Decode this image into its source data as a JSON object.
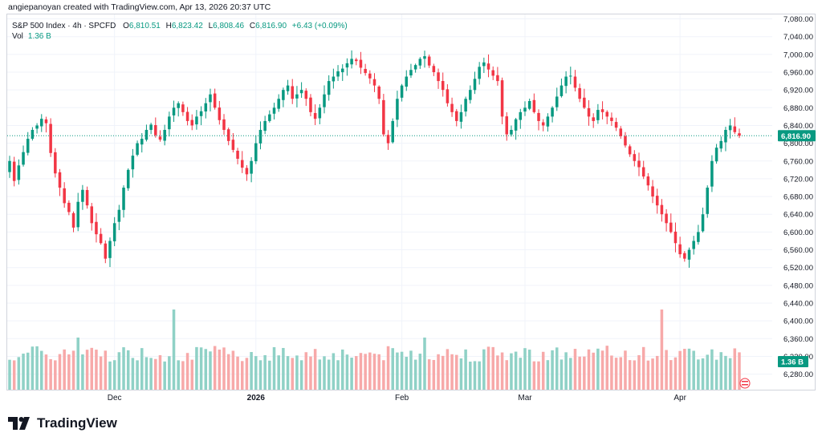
{
  "header": {
    "author_line": "angiepanoyan created with TradingView.com, Apr 13, 2026 20:37 UTC"
  },
  "legend": {
    "symbol": "S&P 500 Index · 4h · SPCFD",
    "open_label": "O",
    "open": "6,810.51",
    "high_label": "H",
    "high": "6,823.42",
    "low_label": "L",
    "low": "6,808.46",
    "close_label": "C",
    "close": "6,816.90",
    "change": "+6.43 (+0.09%)",
    "vol_label": "Vol",
    "vol_value": "1.36 B"
  },
  "brand": {
    "name": "TradingView"
  },
  "colors": {
    "up": "#089981",
    "down": "#f23645",
    "up_vol": "#8fd1c6",
    "down_vol": "#f7a9a9",
    "grid": "#f0f3fa"
  },
  "chart_data": {
    "type": "candlestick",
    "y_axis": {
      "ticks": [
        6280,
        6320,
        6360,
        6400,
        6440,
        6480,
        6520,
        6560,
        6600,
        6640,
        6680,
        6720,
        6760,
        6800,
        6840,
        6880,
        6920,
        6960,
        7000,
        7040,
        7080
      ],
      "tick_labels": [
        "6,280.00",
        "6,320.00",
        "6,360.00",
        "6,400.00",
        "6,440.00",
        "6,480.00",
        "6,520.00",
        "6,560.00",
        "6,600.00",
        "6,640.00",
        "6,680.00",
        "6,720.00",
        "6,760.00",
        "6,800.00",
        "6,840.00",
        "6,880.00",
        "6,920.00",
        "6,960.00",
        "7,000.00",
        "7,040.00",
        "7,080.00"
      ],
      "range": [
        6245,
        7090
      ],
      "position": "right"
    },
    "x_axis": {
      "labels": [
        {
          "text": "Dec",
          "index": 23
        },
        {
          "text": "2026",
          "index": 54
        },
        {
          "text": "Feb",
          "index": 86
        },
        {
          "text": "Mar",
          "index": 113
        },
        {
          "text": "Apr",
          "index": 147
        }
      ]
    },
    "last_price": {
      "value": 6816.9,
      "label": "6,816.90"
    },
    "last_volume": {
      "label": "1.36 B"
    },
    "closes": [
      6760,
      6715,
      6750,
      6780,
      6810,
      6830,
      6840,
      6855,
      6845,
      6778,
      6732,
      6700,
      6665,
      6645,
      6610,
      6668,
      6695,
      6660,
      6620,
      6595,
      6575,
      6540,
      6580,
      6620,
      6650,
      6700,
      6740,
      6772,
      6800,
      6810,
      6830,
      6842,
      6818,
      6808,
      6830,
      6860,
      6880,
      6890,
      6870,
      6850,
      6840,
      6860,
      6872,
      6890,
      6910,
      6880,
      6852,
      6830,
      6805,
      6785,
      6765,
      6745,
      6730,
      6760,
      6800,
      6830,
      6850,
      6865,
      6880,
      6900,
      6920,
      6930,
      6900,
      6910,
      6920,
      6900,
      6870,
      6855,
      6880,
      6910,
      6940,
      6950,
      6962,
      6968,
      6980,
      6990,
      6985,
      6970,
      6958,
      6946,
      6930,
      6900,
      6820,
      6800,
      6850,
      6900,
      6930,
      6950,
      6965,
      6976,
      6990,
      6996,
      6975,
      6960,
      6940,
      6920,
      6890,
      6870,
      6850,
      6870,
      6900,
      6920,
      6945,
      6972,
      6982,
      6966,
      6952,
      6940,
      6860,
      6820,
      6830,
      6854,
      6870,
      6880,
      6895,
      6870,
      6850,
      6840,
      6860,
      6880,
      6905,
      6930,
      6950,
      6952,
      6925,
      6900,
      6880,
      6860,
      6850,
      6875,
      6870,
      6860,
      6850,
      6835,
      6816,
      6795,
      6775,
      6760,
      6746,
      6725,
      6705,
      6680,
      6660,
      6640,
      6620,
      6600,
      6575,
      6550,
      6540,
      6560,
      6580,
      6600,
      6640,
      6700,
      6760,
      6790,
      6805,
      6830,
      6840,
      6825,
      6816.9
    ],
    "series": [
      {
        "name": "S&P 500 Index",
        "type": "candles"
      }
    ]
  }
}
